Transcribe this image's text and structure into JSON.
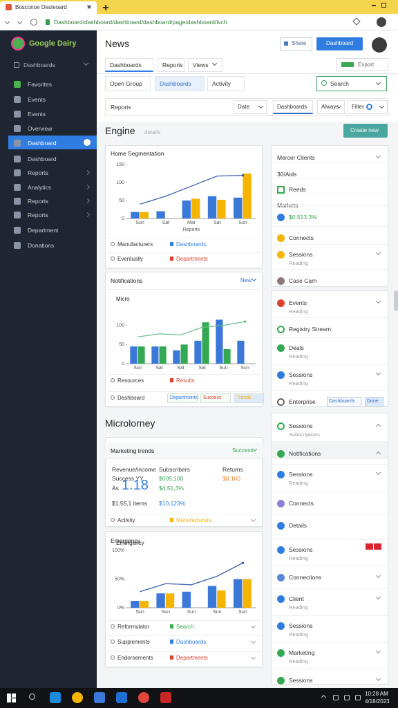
{
  "browser": {
    "tab_title": "Bosconoe Desteoard",
    "url": "Dashboard/dashboard/dashboard/dashboard/page/dashboard/lvch"
  },
  "sidebar": {
    "logo": "Google Dairy",
    "section": "Dashboards",
    "items": [
      "Favorites",
      "Events",
      "Events",
      "Overview",
      "Dashboard",
      "Dashboard",
      "Reports",
      "Analytics",
      "Reports",
      "Reports",
      "Department",
      "Donations"
    ]
  },
  "header": {
    "title": "News",
    "share": "Share",
    "primary": "Dashboard",
    "export": "Export"
  },
  "tabs": [
    "Dashboards",
    "Reports",
    "Views"
  ],
  "subtabs": [
    "Open Group",
    "Dashboards",
    "Activity"
  ],
  "search": "Search",
  "filters": {
    "label": "Reports",
    "options": [
      "Date",
      "Dashboards",
      "Always",
      "Filter"
    ]
  },
  "section1": {
    "title": "Engine",
    "note": "details",
    "button": "Create new"
  },
  "section2": {
    "title": "Microlorney"
  },
  "cards": [
    {
      "title": "Home Segmentation",
      "rows": [
        [
          "Manufacturers",
          "Dashboards"
        ],
        [
          "Eventually",
          "Departments"
        ]
      ]
    },
    {
      "title": "Notifications",
      "action": "New",
      "rows": [
        [
          "Resources",
          "Results"
        ],
        [
          "Dashboard",
          "Departments",
          "Success",
          "Trends"
        ]
      ]
    },
    {
      "title": "Marketing trends",
      "action": "Success",
      "stats": [
        [
          "Revenue/income",
          "Subscribers",
          "Returns"
        ],
        [
          "Success YY",
          "$005,100",
          "$0,160"
        ],
        [
          "As",
          "1.18",
          "$4,51,3%"
        ],
        [
          "$1,55,1 items",
          "$10,123%"
        ]
      ],
      "rows": [
        [
          "Activity",
          "Manufacturers"
        ]
      ]
    },
    {
      "title": "Emergency",
      "rows": [
        [
          "Reformulator",
          "Search"
        ],
        [
          "Supplements",
          "Dashboards"
        ],
        [
          "Endorsements",
          "Departments"
        ]
      ]
    }
  ],
  "chart_data": [
    {
      "type": "bar",
      "categories": [
        "Sun",
        "Sat",
        "Mar",
        "Sat",
        "Sun"
      ],
      "xlabel": "Reports",
      "ylim": [
        0,
        150
      ],
      "yticks": [
        0,
        50,
        100,
        150
      ],
      "series": [
        {
          "type": "bar",
          "color": "#3b78d8",
          "values": [
            18,
            20,
            50,
            62,
            58
          ]
        },
        {
          "type": "bar",
          "color": "#f4b400",
          "values": [
            18,
            null,
            55,
            52,
            125
          ]
        },
        {
          "type": "line",
          "color": "#3b5fa8",
          "values": [
            40,
            62,
            90,
            118,
            120
          ]
        }
      ]
    },
    {
      "type": "bar",
      "title": "Micro",
      "categories": [
        "Sun",
        "Sat",
        "Sat",
        "Sat",
        "Sun",
        "Sun"
      ],
      "ylim": [
        0,
        150
      ],
      "yticks": [
        0,
        50,
        100
      ],
      "series": [
        {
          "type": "bar",
          "color": "#3b78d8",
          "values": [
            45,
            45,
            35,
            60,
            115,
            60
          ]
        },
        {
          "type": "bar",
          "color": "#34a853",
          "values": [
            45,
            45,
            50,
            108,
            38,
            null
          ]
        },
        {
          "type": "line",
          "color": "#6cc08b",
          "values": [
            70,
            78,
            75,
            95,
            100,
            110
          ]
        }
      ]
    },
    {
      "type": "bar",
      "title": "Emergency",
      "categories": [
        "Sun",
        "Sun",
        "Sun",
        "Sun",
        "Sun"
      ],
      "ylim": [
        0,
        100
      ],
      "yticks": [
        {
          "value": 0,
          "label": "0%"
        },
        {
          "value": 50,
          "label": "50%"
        },
        {
          "value": 100,
          "label": "100%"
        }
      ],
      "series": [
        {
          "type": "bar",
          "color": "#3b78d8",
          "values": [
            12,
            25,
            28,
            38,
            50
          ]
        },
        {
          "type": "bar",
          "color": "#f4b400",
          "values": [
            12,
            25,
            null,
            30,
            50
          ]
        },
        {
          "type": "line",
          "color": "#3b5fa8",
          "values": [
            28,
            42,
            40,
            55,
            78
          ]
        }
      ]
    }
  ],
  "list_a": [
    {
      "title": "Mercer Clients"
    },
    {
      "title": "30/Aids"
    },
    {
      "title": "Reeds"
    },
    {
      "title": "Markets"
    },
    {
      "title": "$0,513.3%"
    },
    {
      "title": "Connects"
    },
    {
      "title": "Sessions",
      "sub": "Reading"
    },
    {
      "title": "Case Cam"
    }
  ],
  "list_b": [
    {
      "title": "Events",
      "sub": "Reading"
    },
    {
      "title": "Registry Stream"
    },
    {
      "title": "Deals",
      "sub": "Reading"
    },
    {
      "title": "Sessions",
      "sub": "Reading"
    },
    {
      "title": "Enterprise",
      "tags": [
        "Dashboards",
        "Done"
      ]
    }
  ],
  "list_c": [
    {
      "title": "Sessions",
      "sub": "Subscriptions"
    },
    {
      "title": "Notifications"
    },
    {
      "title": "Sessions",
      "sub": "Reading"
    },
    {
      "title": "Connects"
    },
    {
      "title": "Details"
    },
    {
      "title": "Sessions",
      "sub": "Reading"
    },
    {
      "title": "Connections"
    },
    {
      "title": "Client",
      "sub": "Reading"
    },
    {
      "title": "Sessions",
      "sub": "Reading"
    },
    {
      "title": "Marketing",
      "sub": "Reading"
    },
    {
      "title": "Sessions"
    }
  ],
  "taskbar": {
    "time": "10:28 AM",
    "date": "4/18/2023"
  }
}
